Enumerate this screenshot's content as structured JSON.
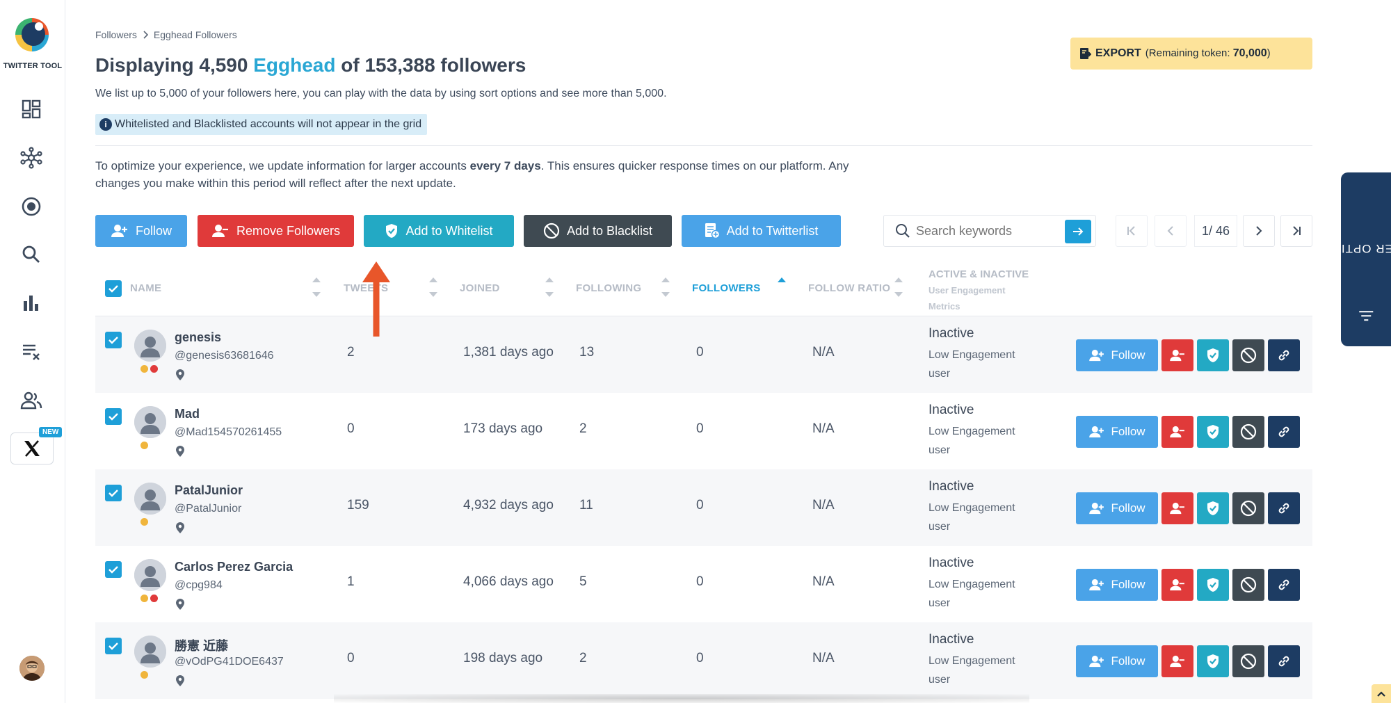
{
  "app": {
    "logo_text": "TWITTER TOOL",
    "new_badge": "NEW"
  },
  "breadcrumb": {
    "parent": "Followers",
    "separator": ">",
    "current": "Egghead Followers"
  },
  "header": {
    "title_prefix": "Displaying 4,590 ",
    "title_highlight": "Egghead",
    "title_suffix": " of 153,388 followers",
    "subtitle": "We list up to 5,000 of your followers here, you can play with the data by using sort options and see more than 5,000.",
    "notice": "Whitelisted and Blacklisted accounts will not appear in the grid",
    "optimize_pre": "To optimize your experience, we update information for larger accounts ",
    "optimize_bold": "every 7 days",
    "optimize_post": ". This ensures quicker response times on our platform. Any changes you make within this period will reflect after the next update."
  },
  "export": {
    "label": "EXPORT",
    "token_prefix": "(Remaining token: ",
    "token_value": "70,000",
    "token_suffix": ")"
  },
  "toolbar": {
    "follow": "Follow",
    "remove": "Remove Followers",
    "whitelist": "Add to Whitelist",
    "blacklist": "Add to Blacklist",
    "twitterlist": "Add to Twitterlist",
    "search_placeholder": "Search keywords"
  },
  "pager": {
    "info": "1/ 46"
  },
  "table": {
    "headers": {
      "name": "NAME",
      "tweets": "TWEETS",
      "joined": "JOINED",
      "following": "FOLLOWING",
      "followers": "FOLLOWERS",
      "ratio": "FOLLOW RATIO",
      "activity": "ACTIVE & INACTIVE",
      "activity_sub1": "User Engagement",
      "activity_sub2": "Metrics"
    },
    "follow_label": "Follow",
    "rows": [
      {
        "name": "genesis",
        "handle": "@genesis63681646",
        "tweets": "2",
        "joined": "1,381 days ago",
        "following": "13",
        "followers": "0",
        "ratio": "N/A",
        "status": "Inactive",
        "eng1": "Low Engagement",
        "eng2": "user"
      },
      {
        "name": "Mad",
        "handle": "@Mad154570261455",
        "tweets": "0",
        "joined": "173 days ago",
        "following": "2",
        "followers": "0",
        "ratio": "N/A",
        "status": "Inactive",
        "eng1": "Low Engagement",
        "eng2": "user"
      },
      {
        "name": "PatalJunior",
        "handle": "@PatalJunior",
        "tweets": "159",
        "joined": "4,932 days ago",
        "following": "11",
        "followers": "0",
        "ratio": "N/A",
        "status": "Inactive",
        "eng1": "Low Engagement",
        "eng2": "user"
      },
      {
        "name": "Carlos Perez Garcia",
        "handle": "@cpg984",
        "tweets": "1",
        "joined": "4,066 days ago",
        "following": "5",
        "followers": "0",
        "ratio": "N/A",
        "status": "Inactive",
        "eng1": "Low Engagement",
        "eng2": "user"
      },
      {
        "name": "勝憲 近藤",
        "handle": "@vOdPG41DOE6437",
        "tweets": "0",
        "joined": "198 days ago",
        "following": "2",
        "followers": "0",
        "ratio": "N/A",
        "status": "Inactive",
        "eng1": "Low Engagement",
        "eng2": "user"
      }
    ]
  },
  "filter": {
    "label": "FILTER OPTIONS"
  },
  "colors": {
    "blue": "#4aa3e8",
    "red": "#e03a3a",
    "teal": "#23a9c4",
    "dark_gray": "#3f4a52",
    "navy": "#1d3c63",
    "accent": "#1e9fd8",
    "yellow": "#fde39a",
    "arrow": "#e8562a"
  },
  "icons": [
    "dashboard-icon",
    "network-icon",
    "target-icon",
    "search-icon",
    "bar-chart-icon",
    "list-remove-icon",
    "users-icon",
    "x-logo-icon",
    "info-icon",
    "export-icon",
    "add-user-icon",
    "remove-user-icon",
    "shield-icon",
    "block-icon",
    "list-add-icon",
    "link-icon",
    "location-pin-icon",
    "filter-icon",
    "chevron-up-icon"
  ]
}
